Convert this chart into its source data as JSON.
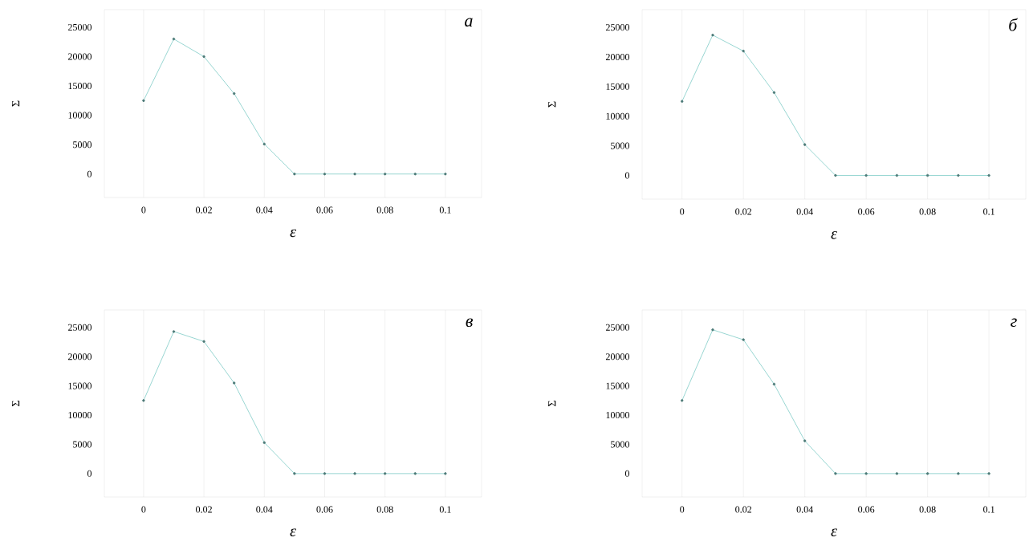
{
  "chart_data": [
    {
      "type": "line",
      "x": [
        0,
        0.01,
        0.02,
        0.03,
        0.04,
        0.05,
        0.06,
        0.07,
        0.08,
        0.09,
        0.1
      ],
      "values": [
        12500,
        23000,
        20000,
        13700,
        5100,
        0,
        0,
        0,
        0,
        0,
        0
      ],
      "color": "#7fcbc6",
      "marker": "circle",
      "xlim": [
        -0.013,
        0.112
      ],
      "ylim": [
        -4000,
        28000
      ],
      "xticks": [
        0,
        0.02,
        0.04,
        0.06,
        0.08,
        0.1
      ],
      "yticks": [
        0,
        5000,
        10000,
        15000,
        20000,
        25000
      ],
      "grid": "x",
      "xlabel": "ε",
      "ylabel": "Σ",
      "annotations": [
        "а"
      ]
    },
    {
      "type": "line",
      "x": [
        0,
        0.01,
        0.02,
        0.03,
        0.04,
        0.05,
        0.06,
        0.07,
        0.08,
        0.09,
        0.1
      ],
      "values": [
        12500,
        23700,
        21000,
        14000,
        5200,
        0,
        0,
        0,
        0,
        0,
        0
      ],
      "color": "#7fcbc6",
      "marker": "circle",
      "xlim": [
        -0.013,
        0.112
      ],
      "ylim": [
        -4000,
        28000
      ],
      "xticks": [
        0,
        0.02,
        0.04,
        0.06,
        0.08,
        0.1
      ],
      "yticks": [
        0,
        5000,
        10000,
        15000,
        20000,
        25000
      ],
      "grid": "x",
      "xlabel": "ε",
      "ylabel": "Σ",
      "annotations": [
        "б"
      ]
    },
    {
      "type": "line",
      "x": [
        0,
        0.01,
        0.02,
        0.03,
        0.04,
        0.05,
        0.06,
        0.07,
        0.08,
        0.09,
        0.1
      ],
      "values": [
        12500,
        24300,
        22600,
        15500,
        5300,
        0,
        0,
        0,
        0,
        0,
        0
      ],
      "color": "#7fcbc6",
      "marker": "circle",
      "xlim": [
        -0.013,
        0.112
      ],
      "ylim": [
        -4000,
        28000
      ],
      "xticks": [
        0,
        0.02,
        0.04,
        0.06,
        0.08,
        0.1
      ],
      "yticks": [
        0,
        5000,
        10000,
        15000,
        20000,
        25000
      ],
      "grid": "x",
      "xlabel": "ε",
      "ylabel": "Σ",
      "annotations": [
        "в"
      ]
    },
    {
      "type": "line",
      "x": [
        0,
        0.01,
        0.02,
        0.03,
        0.04,
        0.05,
        0.06,
        0.07,
        0.08,
        0.09,
        0.1
      ],
      "values": [
        12500,
        24600,
        22900,
        15300,
        5600,
        0,
        0,
        0,
        0,
        0,
        0
      ],
      "color": "#7fcbc6",
      "marker": "circle",
      "xlim": [
        -0.013,
        0.112
      ],
      "ylim": [
        -4000,
        28000
      ],
      "xticks": [
        0,
        0.02,
        0.04,
        0.06,
        0.08,
        0.1
      ],
      "yticks": [
        0,
        5000,
        10000,
        15000,
        20000,
        25000
      ],
      "grid": "x",
      "xlabel": "ε",
      "ylabel": "Σ",
      "annotations": [
        "г"
      ]
    }
  ]
}
